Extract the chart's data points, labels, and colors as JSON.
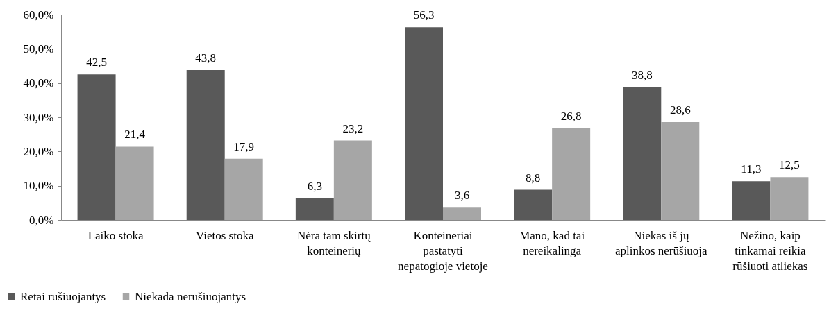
{
  "chart_data": {
    "type": "bar",
    "categories": [
      "Laiko stoka",
      "Vietos stoka",
      "Nėra tam skirtų konteinerių",
      "Konteineriai pastatyti nepatogioje vietoje",
      "Mano, kad tai nereikalinga",
      "Niekas iš jų aplinkos nerūšiuoja",
      "Nežino, kaip tinkamai reikia rūšiuoti atliekas"
    ],
    "series": [
      {
        "name": "Retai rūšiuojantys",
        "color": "#595959",
        "values": [
          42.5,
          43.8,
          6.3,
          56.3,
          8.8,
          38.8,
          11.3
        ],
        "value_labels": [
          "42,5",
          "43,8",
          "6,3",
          "56,3",
          "8,8",
          "38,8",
          "11,3"
        ]
      },
      {
        "name": "Niekada nerūšiuojantys",
        "color": "#a6a6a6",
        "values": [
          21.4,
          17.9,
          23.2,
          3.6,
          26.8,
          28.6,
          12.5
        ],
        "value_labels": [
          "21,4",
          "17,9",
          "23,2",
          "3,6",
          "26,8",
          "28,6",
          "12,5"
        ]
      }
    ],
    "ylim": [
      0,
      60
    ],
    "yticks": [
      {
        "value": 0,
        "label": "0,0%"
      },
      {
        "value": 10,
        "label": "10,0%"
      },
      {
        "value": 20,
        "label": "20,0%"
      },
      {
        "value": 30,
        "label": "30,0%"
      },
      {
        "value": 40,
        "label": "40,0%"
      },
      {
        "value": 50,
        "label": "50,0%"
      },
      {
        "value": 60,
        "label": "60,0%"
      }
    ],
    "grid": false,
    "legend": "bottom left"
  }
}
